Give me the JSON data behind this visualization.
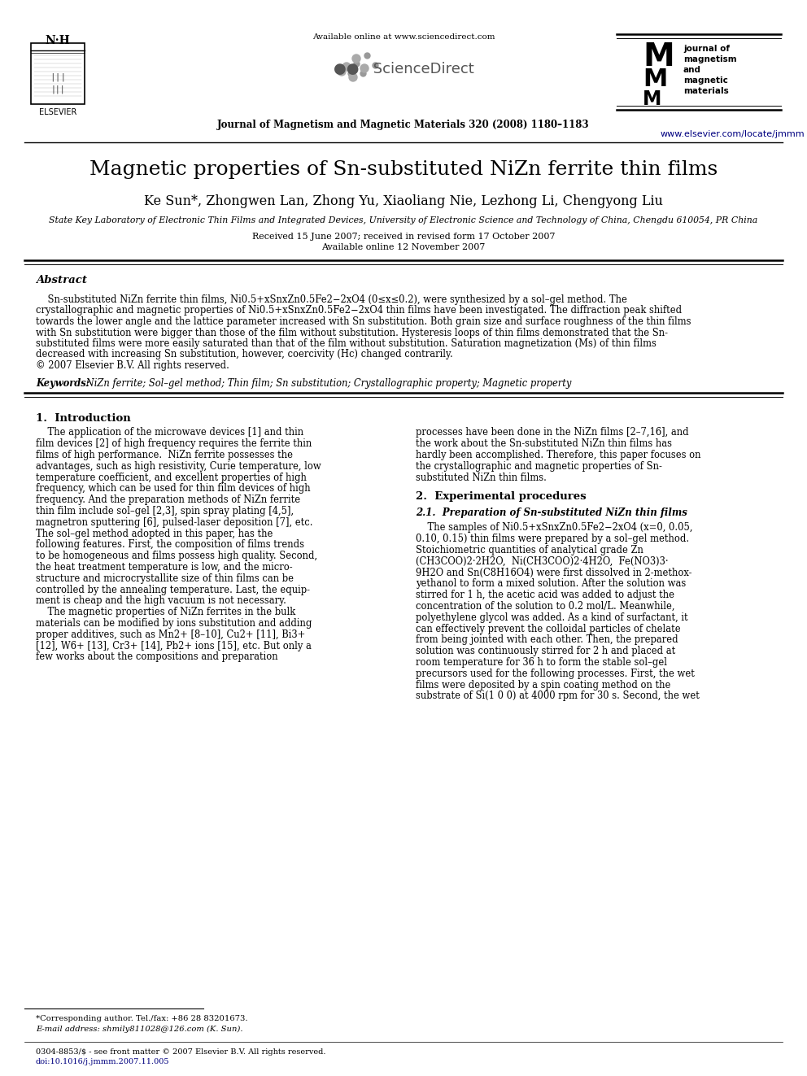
{
  "title": "Magnetic properties of Sn-substituted NiZn ferrite thin films",
  "authors": "Ke Sun*, Zhongwen Lan, Zhong Yu, Xiaoliang Nie, Lezhong Li, Chengyong Liu",
  "affiliation": "State Key Laboratory of Electronic Thin Films and Integrated Devices, University of Electronic Science and Technology of China, Chengdu 610054, PR China",
  "received": "Received 15 June 2007; received in revised form 17 October 2007",
  "available": "Available online 12 November 2007",
  "journal_header": "Available online at www.sciencedirect.com",
  "journal_citation": "Journal of Magnetism and Magnetic Materials 320 (2008) 1180–1183",
  "journal_url": "www.elsevier.com/locate/jmmm",
  "abstract_title": "Abstract",
  "keywords_label": "Keywords:",
  "keywords_body": " NiZn ferrite; Sol–gel method; Thin film; Sn substitution; Crystallographic property; Magnetic property",
  "section1_title": "1.  Introduction",
  "section2_title": "2.  Experimental procedures",
  "section2_1_title": "2.1.  Preparation of Sn-substituted NiZn thin films",
  "footnote_asterisk": "*Corresponding author. Tel./fax: +86 28 83201673.",
  "footnote_email": "E-mail address: shmily811028@126.com (K. Sun).",
  "footnote_issn": "0304-8853/$ - see front matter © 2007 Elsevier B.V. All rights reserved.",
  "footnote_doi": "doi:10.1016/j.jmmm.2007.11.005",
  "elsevier_text": "ELSEVIER",
  "bg_color": "#ffffff",
  "text_color": "#000000",
  "link_color": "#000080",
  "blue_color": "#000080"
}
